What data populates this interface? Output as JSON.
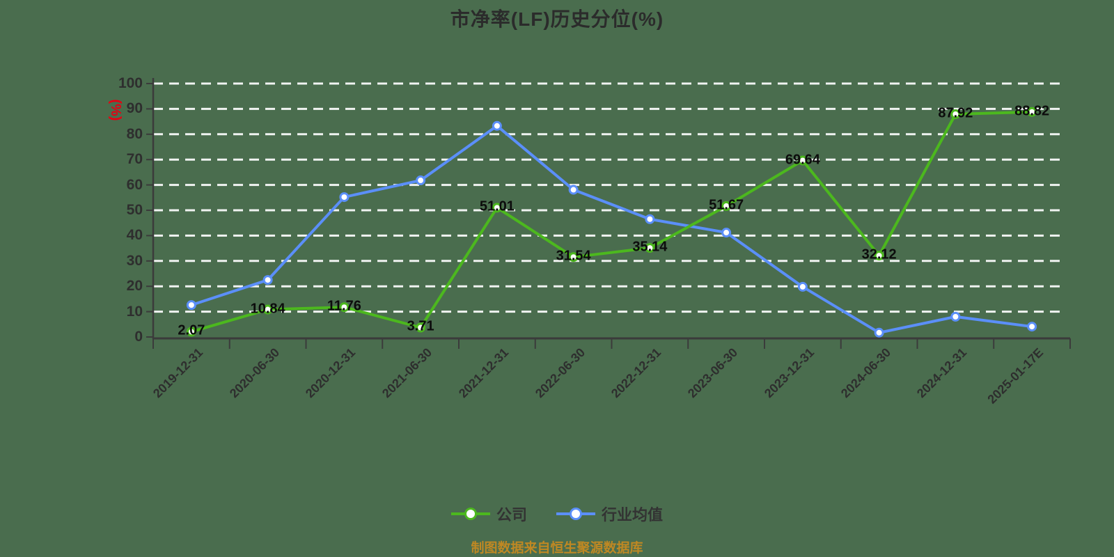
{
  "title": "市净率(LF)历史分位(%)",
  "y_axis_unit_label": "(%)",
  "footer_note": "制图数据来自恒生聚源数据库",
  "colors": {
    "background": "#4a6d4e",
    "title_text": "#2b2b2b",
    "axis": "#3b3b3b",
    "grid_line": "#ffffff",
    "tick_text": "#2e2e2e",
    "data_label_text": "#0c0c0c",
    "unit_label_red": "#e60012",
    "footer_text": "#bf8823",
    "legend_text": "#333333",
    "marker_fill": "#ffffff"
  },
  "chart_data": {
    "type": "line",
    "title": "市净率(LF)历史分位(%)",
    "ylabel": "(%)",
    "xlabel": "",
    "ylim": [
      0,
      100
    ],
    "y_ticks": [
      0,
      10,
      20,
      30,
      40,
      50,
      60,
      70,
      80,
      90,
      100
    ],
    "grid": "horizontal-white-dashed",
    "legend_position": "bottom",
    "categories": [
      "2019-12-31",
      "2020-06-30",
      "2020-12-31",
      "2021-06-30",
      "2021-12-31",
      "2022-06-30",
      "2022-12-31",
      "2023-06-30",
      "2023-12-31",
      "2024-06-30",
      "2024-12-31",
      "2025-01-17E"
    ],
    "series": [
      {
        "name": "公司",
        "color": "#4cb81e",
        "labels_shown": true,
        "values": [
          2.07,
          10.84,
          11.76,
          3.71,
          51.01,
          31.54,
          35.14,
          51.67,
          69.64,
          32.12,
          87.92,
          88.82
        ]
      },
      {
        "name": "行业均值",
        "color": "#5b8ff9",
        "labels_shown": false,
        "values": [
          12.6,
          22.5,
          55.2,
          61.8,
          83.3,
          58.1,
          46.5,
          41.2,
          19.8,
          1.7,
          8.0,
          4.1
        ]
      }
    ]
  }
}
